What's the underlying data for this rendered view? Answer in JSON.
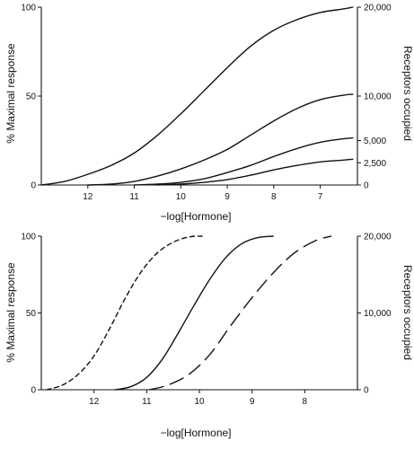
{
  "chart_data": [
    {
      "type": "line",
      "xlabel": "−log[Hormone]",
      "ylabel": "% Maximal response",
      "y2label": "Receptors occupied",
      "xticks": [
        12,
        11,
        10,
        9,
        8,
        7
      ],
      "xlim": [
        13,
        6.2
      ],
      "yticks": [
        0,
        50,
        100
      ],
      "ylim": [
        0,
        100
      ],
      "y2ticks": [
        "0",
        "2,500",
        "5,000",
        "10,000",
        "20,000"
      ],
      "y2tick_values": [
        0,
        2500,
        5000,
        10000,
        20000
      ],
      "y2lim": [
        0,
        20000
      ],
      "series": [
        {
          "style": "solid",
          "x": [
            13,
            12.5,
            12,
            11.5,
            11,
            10.5,
            10,
            9.5,
            9,
            8.5,
            8,
            7.5,
            7,
            6.5,
            6.3
          ],
          "y": [
            0,
            2,
            6,
            11,
            18,
            28,
            40,
            53,
            66,
            78,
            87,
            93,
            97,
            99,
            100
          ]
        },
        {
          "style": "solid",
          "x": [
            12,
            11.5,
            11,
            10.5,
            10,
            9.5,
            9,
            8.5,
            8,
            7.5,
            7,
            6.5,
            6.3
          ],
          "y": [
            0,
            0.5,
            2,
            5,
            9,
            14,
            20,
            28,
            36,
            43,
            48,
            50.5,
            51
          ]
        },
        {
          "style": "solid",
          "x": [
            11,
            10.5,
            10,
            9.5,
            9,
            8.5,
            8,
            7.5,
            7,
            6.5,
            6.3
          ],
          "y": [
            0,
            0.5,
            1.5,
            3.5,
            7,
            11,
            16,
            20.5,
            24,
            26,
            26.5
          ]
        },
        {
          "style": "solid",
          "x": [
            10.5,
            10,
            9.5,
            9,
            8.5,
            8,
            7.5,
            7,
            6.5,
            6.3
          ],
          "y": [
            0,
            0.5,
            1.5,
            3,
            5.5,
            8.5,
            11,
            13,
            14,
            14.5
          ]
        }
      ]
    },
    {
      "type": "line",
      "xlabel": "−log[Hormone]",
      "ylabel": "% Maximal response",
      "y2label": "Receptors occupied",
      "xticks": [
        12,
        11,
        10,
        9,
        8
      ],
      "xlim": [
        13,
        7
      ],
      "yticks": [
        0,
        50,
        100
      ],
      "ylim": [
        0,
        100
      ],
      "y2ticks": [
        "0",
        "10,000",
        "20,000"
      ],
      "y2tick_values": [
        0,
        10000,
        20000
      ],
      "y2lim": [
        0,
        20000
      ],
      "series": [
        {
          "style": "short-dash",
          "x": [
            12.9,
            12.6,
            12.3,
            12,
            11.7,
            11.4,
            11.1,
            10.8,
            10.5,
            10.2,
            9.95
          ],
          "y": [
            0,
            3,
            10,
            22,
            40,
            60,
            77,
            89,
            96,
            99.5,
            100
          ]
        },
        {
          "style": "solid",
          "x": [
            11.6,
            11.3,
            11,
            10.7,
            10.4,
            10.1,
            9.8,
            9.5,
            9.2,
            8.9,
            8.6
          ],
          "y": [
            0,
            2,
            8,
            20,
            37,
            55,
            72,
            86,
            95,
            99,
            100
          ]
        },
        {
          "style": "long-dash",
          "x": [
            10.95,
            10.6,
            10.2,
            9.8,
            9.4,
            9,
            8.6,
            8.2,
            7.8,
            7.5
          ],
          "y": [
            0,
            3,
            10,
            23,
            42,
            60,
            76,
            89,
            97,
            100
          ]
        }
      ]
    }
  ]
}
